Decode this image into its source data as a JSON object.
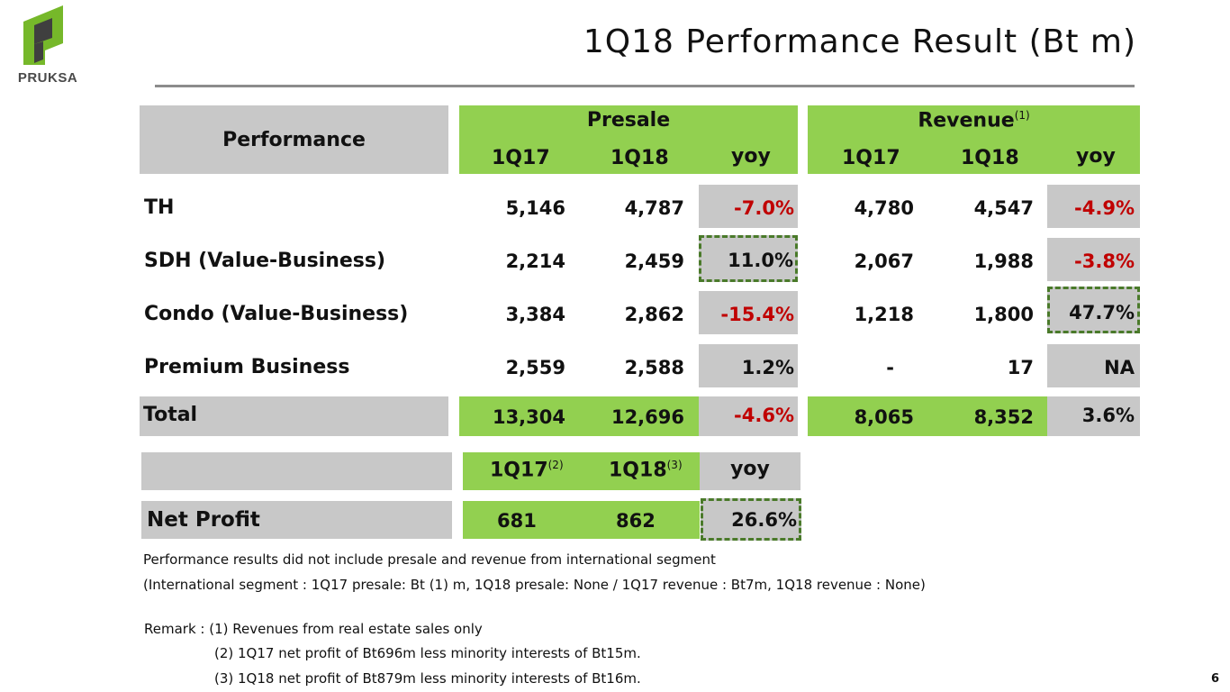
{
  "brand": {
    "name": "PRUKSA",
    "color": "#76b82a"
  },
  "title": "1Q18 Performance Result (Bt m)",
  "table": {
    "row_header": "Performance",
    "presale_title": "Presale",
    "revenue_title": "Revenue",
    "revenue_note_mark": "(1)",
    "sub_headers": [
      "1Q17",
      "1Q18",
      "yoy"
    ],
    "rows": [
      {
        "label": "TH",
        "presale": [
          "5,146",
          "4,787",
          "-7.0%"
        ],
        "revenue": [
          "4,780",
          "4,547",
          "-4.9%"
        ]
      },
      {
        "label": "SDH (Value-Business)",
        "presale": [
          "2,214",
          "2,459",
          "11.0%"
        ],
        "revenue": [
          "2,067",
          "1,988",
          "-3.8%"
        ]
      },
      {
        "label": "Condo (Value-Business)",
        "presale": [
          "3,384",
          "2,862",
          "-15.4%"
        ],
        "revenue": [
          "1,218",
          "1,800",
          "47.7%"
        ]
      },
      {
        "label": "Premium Business",
        "presale": [
          "2,559",
          "2,588",
          "1.2%"
        ],
        "revenue": [
          "-",
          "17",
          "NA"
        ]
      }
    ],
    "total": {
      "label": "Total",
      "presale": [
        "13,304",
        "12,696",
        "-4.6%"
      ],
      "revenue": [
        "8,065",
        "8,352",
        "3.6%"
      ]
    }
  },
  "net_profit": {
    "h1": "1Q17",
    "h1_mark": "(2)",
    "h2": "1Q18",
    "h2_mark": "(3)",
    "h3": "yoy",
    "label": "Net Profit",
    "values": [
      "681",
      "862",
      "26.6%"
    ]
  },
  "notes": {
    "line1": "Performance results did not include presale and revenue from international segment",
    "line2": "(International segment : 1Q17 presale: Bt (1) m, 1Q18 presale: None / 1Q17 revenue : Bt7m, 1Q18 revenue : None)",
    "remark_prefix": "Remark :",
    "remark1": "(1) Revenues from real estate sales only",
    "remark2": "(2) 1Q17 net profit of Bt696m less minority interests of Bt15m.",
    "remark3": "(3) 1Q18 net profit of Bt879m less minority interests of Bt16m."
  },
  "page_number": "6",
  "colors": {
    "green": "#92d050",
    "grey": "#c8c8c8",
    "negative": "#c00000",
    "highlight_border": "#4a7a2a"
  }
}
